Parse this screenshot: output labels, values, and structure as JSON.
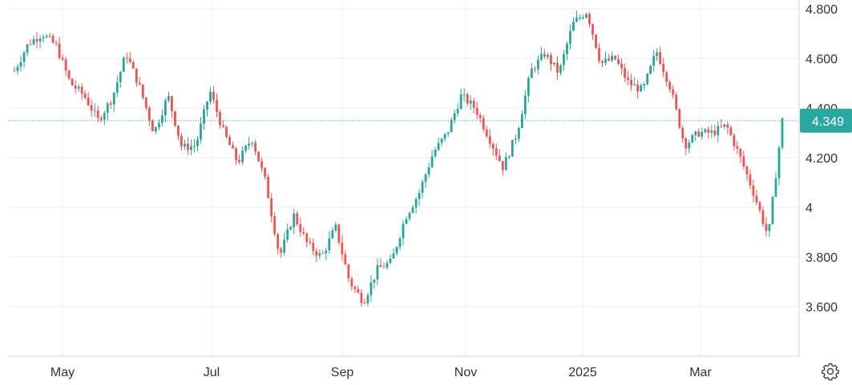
{
  "chart_data": {
    "type": "candlestick",
    "y_ticks": [
      {
        "value": 3.6,
        "label": "3.600"
      },
      {
        "value": 3.8,
        "label": "3.800"
      },
      {
        "value": 4.0,
        "label": "4"
      },
      {
        "value": 4.2,
        "label": "4.200"
      },
      {
        "value": 4.4,
        "label": "4.400"
      },
      {
        "value": 4.6,
        "label": "4.600"
      },
      {
        "value": 4.8,
        "label": "4.800"
      }
    ],
    "ylim": [
      3.4,
      4.82
    ],
    "x_ticks": [
      "May",
      "Jul",
      "Sep",
      "Nov",
      "2025",
      "Mar"
    ],
    "current_price": 4.349,
    "current_price_label": "4.349",
    "up_color": "#26a69a",
    "down_color": "#ef5350",
    "close_series_approx": [
      {
        "period": "Apr",
        "close": 4.55
      },
      {
        "period": "Apr",
        "close": 4.66
      },
      {
        "period": "May",
        "close": 4.7
      },
      {
        "period": "May",
        "close": 4.65
      },
      {
        "period": "May",
        "close": 4.5
      },
      {
        "period": "May",
        "close": 4.45
      },
      {
        "period": "May",
        "close": 4.35
      },
      {
        "period": "May",
        "close": 4.44
      },
      {
        "period": "Jun",
        "close": 4.62
      },
      {
        "period": "Jun",
        "close": 4.48
      },
      {
        "period": "Jun",
        "close": 4.3
      },
      {
        "period": "Jun",
        "close": 4.45
      },
      {
        "period": "Jun",
        "close": 4.24
      },
      {
        "period": "Jun",
        "close": 4.25
      },
      {
        "period": "Jul",
        "close": 4.47
      },
      {
        "period": "Jul",
        "close": 4.3
      },
      {
        "period": "Jul",
        "close": 4.18
      },
      {
        "period": "Jul",
        "close": 4.28
      },
      {
        "period": "Aug",
        "close": 4.1
      },
      {
        "period": "Aug",
        "close": 3.8
      },
      {
        "period": "Aug",
        "close": 3.97
      },
      {
        "period": "Aug",
        "close": 3.85
      },
      {
        "period": "Aug",
        "close": 3.8
      },
      {
        "period": "Sep",
        "close": 3.92
      },
      {
        "period": "Sep",
        "close": 3.7
      },
      {
        "period": "Sep",
        "close": 3.62
      },
      {
        "period": "Sep",
        "close": 3.75
      },
      {
        "period": "Sep",
        "close": 3.78
      },
      {
        "period": "Oct",
        "close": 3.96
      },
      {
        "period": "Oct",
        "close": 4.06
      },
      {
        "period": "Oct",
        "close": 4.22
      },
      {
        "period": "Oct",
        "close": 4.3
      },
      {
        "period": "Nov",
        "close": 4.45
      },
      {
        "period": "Nov",
        "close": 4.4
      },
      {
        "period": "Nov",
        "close": 4.28
      },
      {
        "period": "Nov",
        "close": 4.16
      },
      {
        "period": "Dec",
        "close": 4.3
      },
      {
        "period": "Dec",
        "close": 4.55
      },
      {
        "period": "Dec",
        "close": 4.62
      },
      {
        "period": "Dec",
        "close": 4.54
      },
      {
        "period": "Jan",
        "close": 4.74
      },
      {
        "period": "Jan",
        "close": 4.79
      },
      {
        "period": "Jan",
        "close": 4.58
      },
      {
        "period": "Jan",
        "close": 4.6
      },
      {
        "period": "Jan",
        "close": 4.5
      },
      {
        "period": "Feb",
        "close": 4.47
      },
      {
        "period": "Feb",
        "close": 4.63
      },
      {
        "period": "Feb",
        "close": 4.48
      },
      {
        "period": "Feb",
        "close": 4.25
      },
      {
        "period": "Feb",
        "close": 4.3
      },
      {
        "period": "Mar",
        "close": 4.3
      },
      {
        "period": "Mar",
        "close": 4.33
      },
      {
        "period": "Mar",
        "close": 4.2
      },
      {
        "period": "Mar",
        "close": 4.05
      },
      {
        "period": "Mar",
        "close": 3.88
      },
      {
        "period": "Mar",
        "close": 4.35
      }
    ]
  },
  "toolbar": {
    "settings_icon": "gear-icon"
  }
}
